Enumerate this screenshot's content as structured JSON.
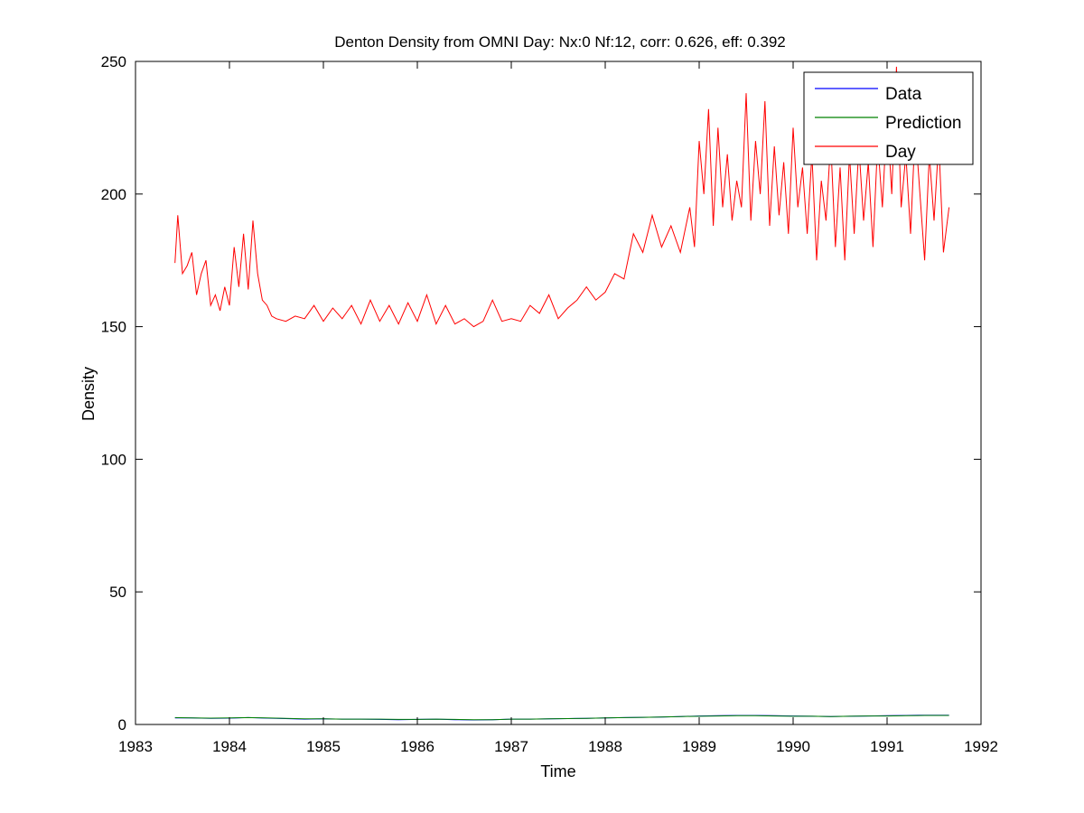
{
  "chart_data": {
    "type": "line",
    "title": "Denton Density from OMNI Day: Nx:0 Nf:12, corr: 0.626, eff: 0.392",
    "xlabel": "Time",
    "ylabel": "Density",
    "xlim": [
      1983,
      1992
    ],
    "ylim": [
      0,
      250
    ],
    "xticks": [
      1983,
      1984,
      1985,
      1986,
      1987,
      1988,
      1989,
      1990,
      1991,
      1992
    ],
    "yticks": [
      0,
      50,
      100,
      150,
      200,
      250
    ],
    "grid": false,
    "legend_position": "top-right",
    "colors": {
      "Data": "#0000ff",
      "Prediction": "#008000",
      "Day": "#ff0000",
      "axes": "#000000"
    },
    "series": [
      {
        "name": "Data",
        "x": [
          1983.42,
          1983.6,
          1983.8,
          1984.0,
          1984.2,
          1984.4,
          1984.6,
          1984.8,
          1985.0,
          1985.2,
          1985.4,
          1985.6,
          1985.8,
          1986.0,
          1986.2,
          1986.4,
          1986.6,
          1986.8,
          1987.0,
          1987.2,
          1987.4,
          1987.6,
          1987.8,
          1988.0,
          1988.2,
          1988.4,
          1988.6,
          1988.8,
          1989.0,
          1989.2,
          1989.4,
          1989.6,
          1989.8,
          1990.0,
          1990.2,
          1990.4,
          1990.6,
          1990.8,
          1991.0,
          1991.2,
          1991.4,
          1991.66
        ],
        "values": [
          2.5,
          2.5,
          2.3,
          2.4,
          2.6,
          2.4,
          2.2,
          2.0,
          2.1,
          2.0,
          2.0,
          1.9,
          1.8,
          1.9,
          2.0,
          1.8,
          1.7,
          1.8,
          2.0,
          2.0,
          2.1,
          2.2,
          2.3,
          2.5,
          2.6,
          2.7,
          2.8,
          3.0,
          3.2,
          3.3,
          3.4,
          3.4,
          3.3,
          3.2,
          3.1,
          3.0,
          3.1,
          3.2,
          3.3,
          3.4,
          3.5,
          3.5
        ]
      },
      {
        "name": "Prediction",
        "x": [
          1983.42,
          1983.6,
          1983.8,
          1984.0,
          1984.2,
          1984.4,
          1984.6,
          1984.8,
          1985.0,
          1985.2,
          1985.4,
          1985.6,
          1985.8,
          1986.0,
          1986.2,
          1986.4,
          1986.6,
          1986.8,
          1987.0,
          1987.2,
          1987.4,
          1987.6,
          1987.8,
          1988.0,
          1988.2,
          1988.4,
          1988.6,
          1988.8,
          1989.0,
          1989.2,
          1989.4,
          1989.6,
          1989.8,
          1990.0,
          1990.2,
          1990.4,
          1990.6,
          1990.8,
          1991.0,
          1991.2,
          1991.4,
          1991.66
        ],
        "values": [
          2.6,
          2.5,
          2.4,
          2.5,
          2.6,
          2.5,
          2.3,
          2.1,
          2.1,
          2.0,
          2.0,
          2.0,
          1.9,
          1.9,
          2.0,
          1.9,
          1.8,
          1.8,
          2.0,
          2.0,
          2.1,
          2.2,
          2.3,
          2.5,
          2.6,
          2.7,
          2.8,
          3.0,
          3.1,
          3.2,
          3.3,
          3.3,
          3.2,
          3.1,
          3.1,
          3.0,
          3.1,
          3.2,
          3.2,
          3.3,
          3.4,
          3.4
        ]
      },
      {
        "name": "Day",
        "x": [
          1983.42,
          1983.45,
          1983.5,
          1983.55,
          1983.6,
          1983.65,
          1983.7,
          1983.75,
          1983.8,
          1983.85,
          1983.9,
          1983.95,
          1984.0,
          1984.05,
          1984.1,
          1984.15,
          1984.2,
          1984.25,
          1984.3,
          1984.35,
          1984.4,
          1984.45,
          1984.5,
          1984.6,
          1984.7,
          1984.8,
          1984.9,
          1985.0,
          1985.1,
          1985.2,
          1985.3,
          1985.4,
          1985.5,
          1985.6,
          1985.7,
          1985.8,
          1985.9,
          1986.0,
          1986.1,
          1986.2,
          1986.3,
          1986.4,
          1986.5,
          1986.6,
          1986.7,
          1986.8,
          1986.9,
          1987.0,
          1987.1,
          1987.2,
          1987.3,
          1987.4,
          1987.5,
          1987.6,
          1987.7,
          1987.8,
          1987.9,
          1988.0,
          1988.1,
          1988.2,
          1988.3,
          1988.4,
          1988.5,
          1988.6,
          1988.7,
          1988.8,
          1988.9,
          1988.95,
          1989.0,
          1989.05,
          1989.1,
          1989.15,
          1989.2,
          1989.25,
          1989.3,
          1989.35,
          1989.4,
          1989.45,
          1989.5,
          1989.55,
          1989.6,
          1989.65,
          1989.7,
          1989.75,
          1989.8,
          1989.85,
          1989.9,
          1989.95,
          1990.0,
          1990.05,
          1990.1,
          1990.15,
          1990.2,
          1990.25,
          1990.3,
          1990.35,
          1990.4,
          1990.45,
          1990.5,
          1990.55,
          1990.6,
          1990.65,
          1990.7,
          1990.75,
          1990.8,
          1990.85,
          1990.9,
          1990.95,
          1991.0,
          1991.05,
          1991.1,
          1991.15,
          1991.2,
          1991.25,
          1991.3,
          1991.35,
          1991.4,
          1991.45,
          1991.5,
          1991.55,
          1991.6,
          1991.66
        ],
        "values": [
          174,
          192,
          170,
          173,
          178,
          162,
          170,
          175,
          158,
          162,
          156,
          165,
          158,
          180,
          165,
          185,
          164,
          190,
          170,
          160,
          158,
          154,
          153,
          152,
          154,
          153,
          158,
          152,
          157,
          153,
          158,
          151,
          160,
          152,
          158,
          151,
          159,
          152,
          162,
          151,
          158,
          151,
          153,
          150,
          152,
          160,
          152,
          153,
          152,
          158,
          155,
          162,
          153,
          157,
          160,
          165,
          160,
          163,
          170,
          168,
          185,
          178,
          192,
          180,
          188,
          178,
          195,
          180,
          220,
          200,
          232,
          188,
          225,
          195,
          215,
          190,
          205,
          195,
          238,
          190,
          220,
          200,
          235,
          188,
          218,
          192,
          212,
          185,
          225,
          195,
          210,
          185,
          215,
          175,
          205,
          190,
          220,
          180,
          210,
          175,
          215,
          185,
          218,
          190,
          212,
          180,
          220,
          195,
          230,
          200,
          248,
          195,
          215,
          185,
          225,
          200,
          175,
          215,
          190,
          220,
          178,
          195
        ]
      }
    ]
  }
}
